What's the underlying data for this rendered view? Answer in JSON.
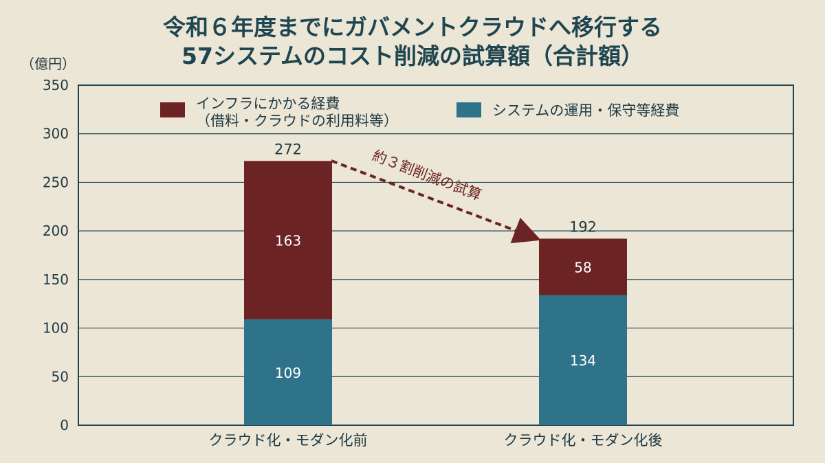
{
  "title_line1": "令和６年度までにガバメントクラウドへ移行する",
  "title_line2": "57システムのコスト削減の試算額（合計額）",
  "chart_data": {
    "type": "bar",
    "stacked": true,
    "title": "令和６年度までにガバメントクラウドへ移行する 57システムのコスト削減の試算額（合計額）",
    "ylabel": "（億円）",
    "ylim": [
      0,
      350
    ],
    "yticks": [
      "0",
      "50",
      "100",
      "150",
      "200",
      "250",
      "300",
      "350"
    ],
    "ytick_values": [
      0,
      50,
      100,
      150,
      200,
      250,
      300,
      350
    ],
    "categories": [
      "クラウド化・モダン化前",
      "クラウド化・モダン化後"
    ],
    "series": [
      {
        "name": "システムの運用・保守等経費",
        "values": [
          109,
          134
        ],
        "color": "#2e7389"
      },
      {
        "name_line1": "インフラにかかる経費",
        "name_line2": "（借料・クラウドの利用料等）",
        "values": [
          163,
          58
        ],
        "color": "#6c2323"
      }
    ],
    "totals": [
      272,
      192
    ],
    "annotation": "約３割削減の試算",
    "legend_position": "top",
    "grid": true
  }
}
